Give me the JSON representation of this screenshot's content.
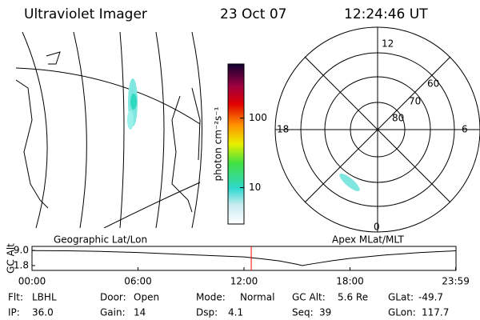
{
  "header": {
    "instrument": "Ultraviolet Imager",
    "date": "23 Oct 07",
    "time": "12:24:46 UT"
  },
  "map_label": "Geographic Lat/Lon",
  "polar": {
    "label": "Apex MLat/MLT",
    "mlt_labels": [
      "12",
      "18",
      "6",
      "0"
    ],
    "lat_labels": [
      "60",
      "70",
      "80"
    ]
  },
  "colorbar": {
    "label": "photon cm⁻²s⁻¹",
    "scale": "log",
    "lim": [
      3,
      600
    ],
    "ticks": [
      10,
      100
    ]
  },
  "chart_data": {
    "type": "line",
    "y_label": "GC Alt",
    "color": "#000000",
    "marker_color": "#ff0000",
    "x": [
      0,
      2,
      4,
      6,
      8,
      10,
      12,
      13,
      14,
      15,
      15.3,
      16,
      17,
      18,
      20,
      22,
      23.98
    ],
    "values": [
      8.9,
      8.8,
      8.5,
      8.0,
      7.3,
      6.6,
      5.9,
      5.0,
      4.0,
      2.4,
      1.8,
      2.8,
      4.1,
      5.2,
      6.8,
      8.0,
      8.8
    ],
    "marker": 12.41,
    "xlim": [
      0,
      24
    ],
    "ylim": [
      -0.5,
      10.9
    ],
    "xticks": [
      {
        "value": 0,
        "label": "00:00"
      },
      {
        "value": 6,
        "label": "06:00"
      },
      {
        "value": 12,
        "label": "12:00"
      },
      {
        "value": 18,
        "label": "18:00"
      },
      {
        "value": 23.98,
        "label": "23:59"
      }
    ],
    "yticks": [
      {
        "value": 1.8,
        "label": "1.8"
      },
      {
        "value": 9.0,
        "label": "9.0"
      }
    ]
  },
  "info": [
    [
      {
        "label": "Flt:",
        "value": "LBHL"
      },
      {
        "label": "Door:",
        "value": "Open"
      },
      {
        "label": "Mode:",
        "value": "Normal"
      },
      {
        "label": "GC Alt:",
        "value": "5.6 Re"
      },
      {
        "label": "GLat:",
        "value": "-49.7"
      }
    ],
    [
      {
        "label": "IP:",
        "value": "36.0"
      },
      {
        "label": "Gain:",
        "value": "14"
      },
      {
        "label": "Dsp:",
        "value": "4.1"
      },
      {
        "label": "Seq:",
        "value": "39"
      },
      {
        "label": "GLon:",
        "value": "117.7"
      }
    ]
  ]
}
